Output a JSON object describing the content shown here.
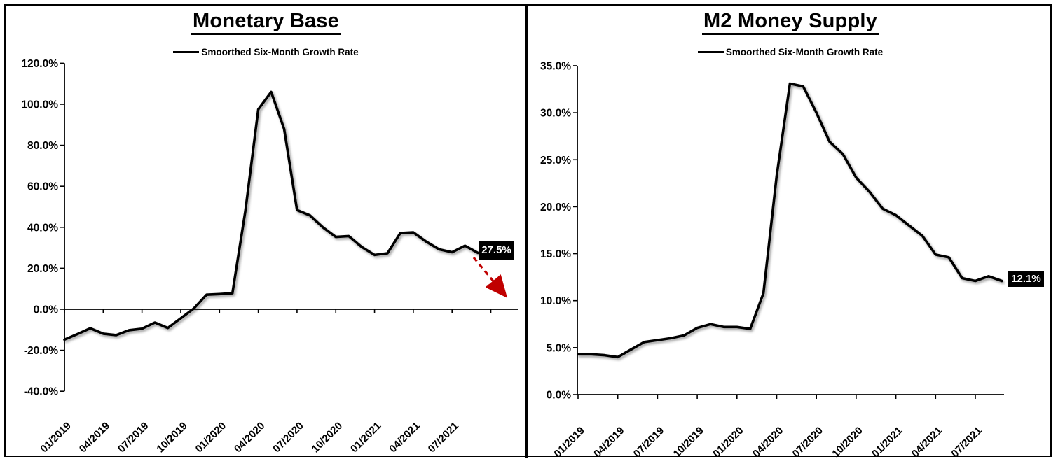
{
  "page": {
    "background": "#FFFFFF",
    "frame_color": "#000000"
  },
  "chart_data": [
    {
      "type": "line",
      "title": "Monetary Base",
      "legend": "Smoorthed Six-Month Growth Rate",
      "line_color": "#000000",
      "grid": false,
      "legend_position": "top-center",
      "xlabel": "",
      "ylabel": "",
      "ylim": [
        -40,
        120
      ],
      "ytick_step": 20,
      "ytick_labels": [
        "120.0%",
        "100.0%",
        "80.0%",
        "60.0%",
        "40.0%",
        "20.0%",
        "0.0%",
        "-20.0%",
        "-40.0%"
      ],
      "x_tick_labels": [
        "01/2019",
        "04/2019",
        "07/2019",
        "10/2019",
        "01/2020",
        "04/2020",
        "07/2020",
        "10/2020",
        "01/2021",
        "04/2021",
        "07/2021"
      ],
      "x": [
        "01/2019",
        "02/2019",
        "03/2019",
        "04/2019",
        "05/2019",
        "06/2019",
        "07/2019",
        "08/2019",
        "09/2019",
        "10/2019",
        "11/2019",
        "12/2019",
        "01/2020",
        "02/2020",
        "03/2020",
        "04/2020",
        "05/2020",
        "06/2020",
        "07/2020",
        "08/2020",
        "09/2020",
        "10/2020",
        "11/2020",
        "12/2020",
        "01/2021",
        "02/2021",
        "03/2021",
        "04/2021",
        "05/2021",
        "06/2021",
        "07/2021",
        "08/2021",
        "09/2021"
      ],
      "values": [
        -14.8,
        -12.1,
        -9.3,
        -11.9,
        -12.6,
        -10.2,
        -9.5,
        -6.5,
        -9.1,
        -4.4,
        0.3,
        7.1,
        7.4,
        7.8,
        48,
        97.5,
        106,
        88,
        48.4,
        45.8,
        40,
        35.3,
        35.7,
        30.4,
        26.5,
        27.3,
        37.2,
        37.5,
        33,
        29.2,
        27.8,
        31,
        27.5
      ],
      "end_label": "27.5%",
      "end_label_bg": "#000000",
      "end_label_color": "#FFFFFF",
      "annotation": {
        "type": "arrow",
        "direction": "down-right",
        "style": "dashed",
        "color": "#C00000"
      }
    },
    {
      "type": "line",
      "title": "M2 Money Supply",
      "legend": "Smoorthed Six-Month Growth Rate",
      "line_color": "#000000",
      "grid": false,
      "legend_position": "top-center",
      "xlabel": "",
      "ylabel": "",
      "ylim": [
        0,
        35
      ],
      "ytick_step": 5,
      "ytick_labels": [
        "35.0%",
        "30.0%",
        "25.0%",
        "20.0%",
        "15.0%",
        "10.0%",
        "5.0%",
        "0.0%"
      ],
      "x_tick_labels": [
        "01/2019",
        "04/2019",
        "07/2019",
        "10/2019",
        "01/2020",
        "04/2020",
        "07/2020",
        "10/2020",
        "01/2021",
        "04/2021",
        "07/2021"
      ],
      "x": [
        "01/2019",
        "02/2019",
        "03/2019",
        "04/2019",
        "05/2019",
        "06/2019",
        "07/2019",
        "08/2019",
        "09/2019",
        "10/2019",
        "11/2019",
        "12/2019",
        "01/2020",
        "02/2020",
        "03/2020",
        "04/2020",
        "05/2020",
        "06/2020",
        "07/2020",
        "08/2020",
        "09/2020",
        "10/2020",
        "11/2020",
        "12/2020",
        "01/2021",
        "02/2021",
        "03/2021",
        "04/2021",
        "05/2021",
        "06/2021",
        "07/2021",
        "08/2021",
        "09/2021"
      ],
      "values": [
        4.3,
        4.3,
        4.2,
        4.0,
        4.8,
        5.6,
        5.8,
        6.0,
        6.3,
        7.1,
        7.5,
        7.2,
        7.2,
        7.0,
        10.8,
        23.3,
        33.1,
        32.8,
        30.0,
        26.9,
        25.6,
        23.1,
        21.6,
        19.8,
        19.1,
        18.0,
        16.9,
        14.9,
        14.6,
        12.4,
        12.1,
        12.6,
        12.1
      ],
      "end_label": "12.1%",
      "end_label_bg": "#000000",
      "end_label_color": "#FFFFFF",
      "annotation": null
    }
  ]
}
